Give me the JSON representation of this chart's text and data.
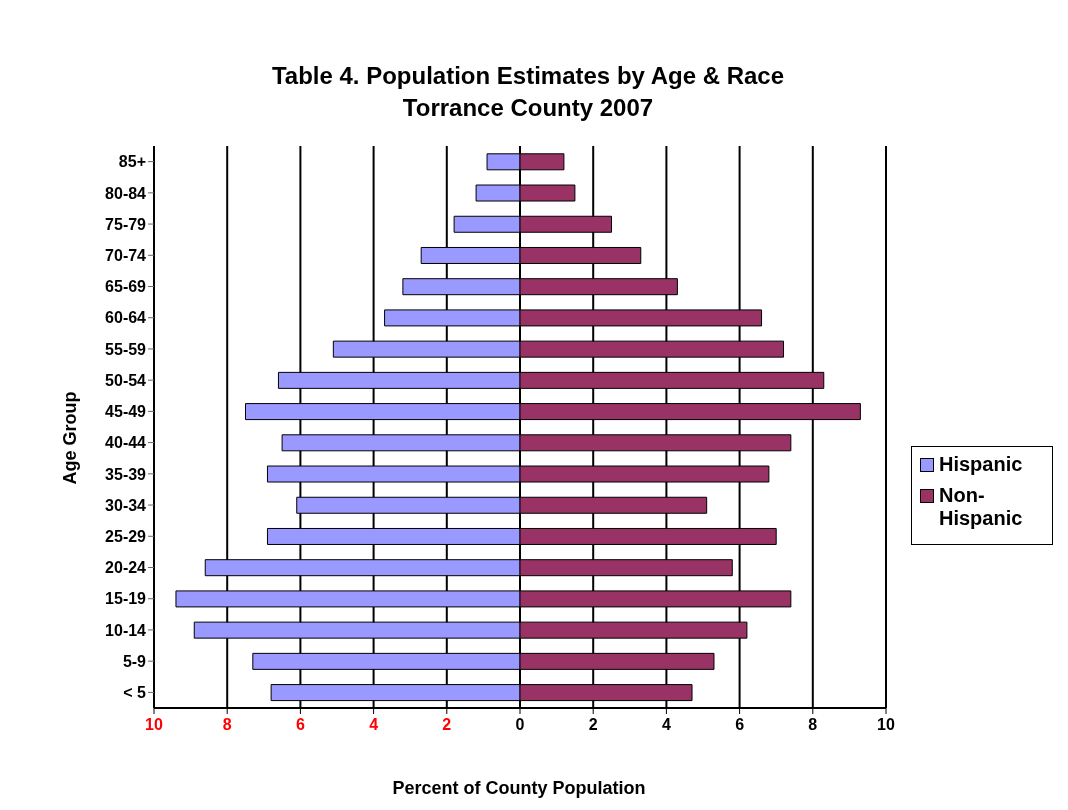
{
  "chart_data": {
    "type": "bar",
    "orientation": "horizontal",
    "stacked": true,
    "title": "Table 4. Population Estimates by Age & Race",
    "subtitle": "Torrance County 2007",
    "xlabel": "Percent of County Population",
    "ylabel": "Age Group",
    "categories": [
      "85+",
      "80-84",
      "75-79",
      "70-74",
      "65-69",
      "60-64",
      "55-59",
      "50-54",
      "45-49",
      "40-44",
      "35-39",
      "30-34",
      "25-29",
      "20-24",
      "15-19",
      "10-14",
      "5-9",
      "< 5"
    ],
    "series": [
      {
        "name": "Hispanic",
        "color": "#9999ff",
        "values": [
          -0.9,
          -1.2,
          -1.8,
          -2.7,
          -3.2,
          -3.7,
          -5.1,
          -6.6,
          -7.5,
          -6.5,
          -6.9,
          -6.1,
          -6.9,
          -8.6,
          -9.4,
          -8.9,
          -7.3,
          -6.8
        ]
      },
      {
        "name": "Non-Hispanic",
        "color": "#993366",
        "values": [
          1.2,
          1.5,
          2.5,
          3.3,
          4.3,
          6.6,
          7.2,
          8.3,
          9.3,
          7.4,
          6.8,
          5.1,
          7.0,
          5.8,
          7.4,
          6.2,
          5.3,
          4.7
        ]
      }
    ],
    "xlim": [
      -10,
      10
    ],
    "xticks": [
      {
        "value": -10,
        "label": "10"
      },
      {
        "value": -8,
        "label": "8"
      },
      {
        "value": -6,
        "label": "6"
      },
      {
        "value": -4,
        "label": "4"
      },
      {
        "value": -2,
        "label": "2"
      },
      0,
      2,
      4,
      6,
      8,
      10
    ],
    "grid": "x",
    "legend": "right"
  }
}
